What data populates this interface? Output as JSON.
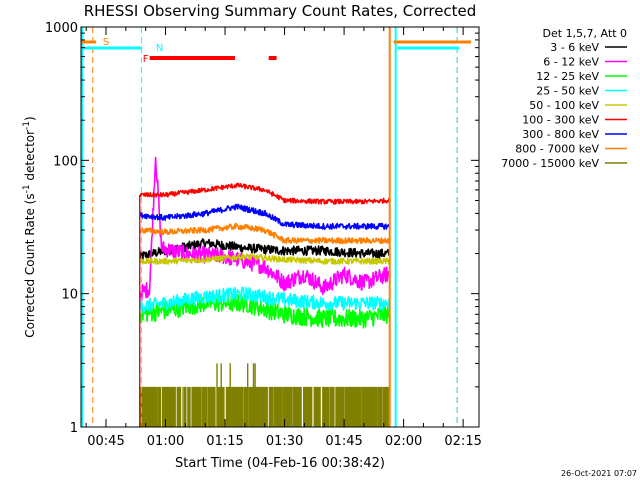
{
  "chart_data": {
    "type": "line",
    "title": "RHESSI Observing Summary Count Rates, Corrected",
    "xlabel": "Start Time (04-Feb-16 00:38:42)",
    "ylabel": "Corrected Count Rate (s⁻¹ detector⁻¹)",
    "ylabel_parts": {
      "main": "Corrected Count Rate (s",
      "sup1": "-1",
      "mid": " detector",
      "sup2": "-1",
      "end": ")"
    },
    "xlim": [
      "00:38:42",
      "02:19:00"
    ],
    "ylim": [
      1,
      1000
    ],
    "yscale": "log",
    "grid": false,
    "x_tick_labels": [
      "00:45",
      "01:00",
      "01:15",
      "01:30",
      "01:45",
      "02:00",
      "02:15"
    ],
    "y_tick_labels": [
      "1",
      "10",
      "100",
      "1000"
    ],
    "legend": {
      "position": "top-right",
      "header": "Det 1,5,7, Att 0",
      "entries": [
        {
          "label": "3 - 6 keV",
          "color": "#000000"
        },
        {
          "label": "6 - 12 keV",
          "color": "#ff00ff"
        },
        {
          "label": "12 - 25 keV",
          "color": "#00ff00"
        },
        {
          "label": "25 - 50 keV",
          "color": "#00ffff"
        },
        {
          "label": "50 - 100 keV",
          "color": "#c8c800"
        },
        {
          "label": "100 - 300 keV",
          "color": "#ff0000"
        },
        {
          "label": "300 - 800 keV",
          "color": "#0000ff"
        },
        {
          "label": "800 - 7000 keV",
          "color": "#ff8000"
        },
        {
          "label": "7000 - 15000 keV",
          "color": "#808000"
        }
      ]
    },
    "data_interval": {
      "start": "00:53:30",
      "end": "01:56:30"
    },
    "series": [
      {
        "name": "3 - 6 keV",
        "color": "#000000",
        "x": [
          "00:53:30",
          "01:00",
          "01:10",
          "01:20",
          "01:30",
          "01:40",
          "01:50",
          "01:56"
        ],
        "values": [
          19,
          21,
          24,
          22,
          21,
          21,
          20,
          20
        ]
      },
      {
        "name": "6 - 12 keV",
        "color": "#ff00ff",
        "x": [
          "00:53:30",
          "00:56",
          "00:57:30",
          "00:59",
          "01:05",
          "01:15",
          "01:25",
          "01:30",
          "01:35",
          "01:40",
          "01:45",
          "01:50",
          "01:56"
        ],
        "values": [
          10,
          11,
          110,
          22,
          20,
          19,
          16,
          12,
          14,
          11,
          14,
          12,
          14
        ]
      },
      {
        "name": "12 - 25 keV",
        "color": "#00ff00",
        "x": [
          "00:53:30",
          "01:00",
          "01:10",
          "01:20",
          "01:30",
          "01:40",
          "01:50",
          "01:56"
        ],
        "values": [
          7,
          7.5,
          8.5,
          8.5,
          7,
          6.5,
          6.5,
          7
        ]
      },
      {
        "name": "25 - 50 keV",
        "color": "#00ffff",
        "x": [
          "00:53:30",
          "01:00",
          "01:10",
          "01:20",
          "01:30",
          "01:40",
          "01:50",
          "01:56"
        ],
        "values": [
          8,
          8.5,
          9.5,
          10,
          9,
          8.5,
          8.5,
          8.5
        ]
      },
      {
        "name": "50 - 100 keV",
        "color": "#c8c800",
        "x": [
          "00:53:30",
          "01:00",
          "01:10",
          "01:20",
          "01:30",
          "01:40",
          "01:50",
          "01:56"
        ],
        "values": [
          17.5,
          17.5,
          18,
          19,
          18,
          17.5,
          17.5,
          17.5
        ]
      },
      {
        "name": "100 - 300 keV",
        "color": "#ff0000",
        "x": [
          "00:53:30",
          "01:00",
          "01:10",
          "01:18",
          "01:25",
          "01:30",
          "01:40",
          "01:50",
          "01:56"
        ],
        "values": [
          55,
          55,
          60,
          65,
          60,
          50,
          49,
          49,
          50
        ]
      },
      {
        "name": "300 - 800 keV",
        "color": "#0000ff",
        "x": [
          "00:53:30",
          "01:00",
          "01:10",
          "01:18",
          "01:25",
          "01:30",
          "01:40",
          "01:50",
          "01:56"
        ],
        "values": [
          39,
          37,
          40,
          45,
          40,
          33,
          32,
          32,
          32
        ]
      },
      {
        "name": "800 - 7000 keV",
        "color": "#ff8000",
        "x": [
          "00:53:30",
          "01:00",
          "01:10",
          "01:18",
          "01:25",
          "01:30",
          "01:40",
          "01:50",
          "01:56"
        ],
        "values": [
          30,
          29,
          30,
          32,
          30,
          25,
          25,
          25,
          25
        ]
      },
      {
        "name": "7000 - 15000 keV",
        "color": "#808000",
        "x": [
          "00:53:30",
          "01:56"
        ],
        "values": [
          1.5,
          1.5
        ]
      }
    ],
    "annotations": [
      {
        "label": "S",
        "color": "#ff8000"
      },
      {
        "label": "N",
        "color": "#00ffff"
      },
      {
        "label": "F",
        "color": "#ff0000"
      }
    ]
  },
  "footer": {
    "timestamp": "26-Oct-2021 07:07"
  }
}
